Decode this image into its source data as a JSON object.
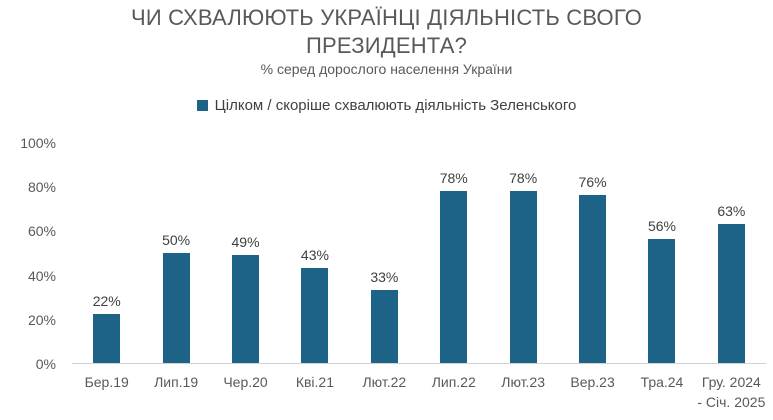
{
  "chart": {
    "title": "ЧИ СХВАЛЮЮТЬ УКРАЇНЦІ ДІЯЛЬНІСТЬ СВОГО ПРЕЗИДЕНТА?",
    "subtitle": "% серед дорослого населення України",
    "legend_label": "Цілком / скоріше схвалюють діяльність Зеленського"
  },
  "colors": {
    "bar": "#1c6387",
    "title_text": "#595959",
    "data_label_text": "#404040",
    "axis_text": "#595959",
    "axis_line": "#d2d2d2"
  },
  "chart_data": {
    "type": "bar",
    "title": "ЧИ СХВАЛЮЮТЬ УКРАЇНЦІ ДІЯЛЬНІСТЬ СВОГО ПРЕЗИДЕНТА?",
    "subtitle": "% серед дорослого населення України",
    "legend": [
      "Цілком / скоріше схвалюють діяльність Зеленського"
    ],
    "legend_position": "top",
    "categories": [
      "Бер.19",
      "Лип.19",
      "Чер.20",
      "Кві.21",
      "Лют.22",
      "Лип.22",
      "Лют.23",
      "Вер.23",
      "Тра.24",
      "Гру. 2024\n- Січ. 2025"
    ],
    "values": [
      22,
      50,
      49,
      43,
      33,
      78,
      78,
      76,
      56,
      63
    ],
    "data_labels": [
      "22%",
      "50%",
      "49%",
      "43%",
      "33%",
      "78%",
      "78%",
      "76%",
      "56%",
      "63%"
    ],
    "xlabel": "",
    "ylabel": "",
    "ylim": [
      0,
      100
    ],
    "y_ticks": [
      "0%",
      "20%",
      "40%",
      "60%",
      "80%",
      "100%"
    ],
    "grid": false
  }
}
